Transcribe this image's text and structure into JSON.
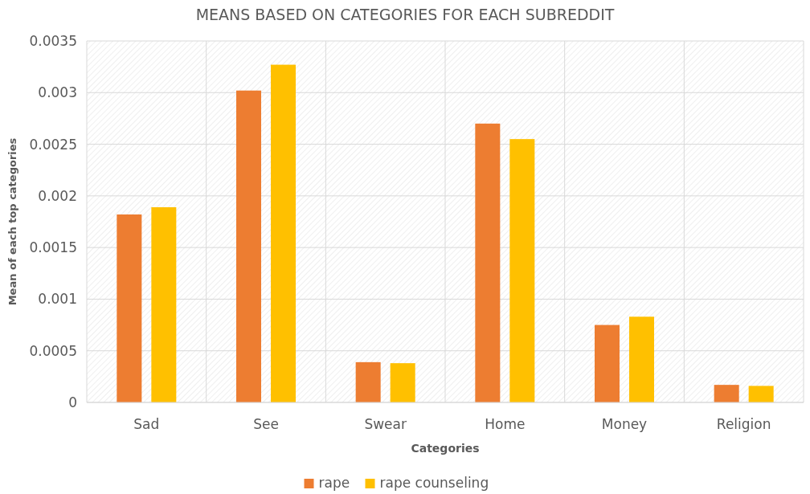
{
  "chart_data": {
    "type": "bar",
    "title": "MEANS BASED ON CATEGORIES FOR EACH SUBREDDIT",
    "xlabel": "Categories",
    "ylabel": "Mean of each top categories",
    "categories": [
      "Sad",
      "See",
      "Swear",
      "Home",
      "Money",
      "Religion"
    ],
    "series": [
      {
        "name": "rape",
        "color": "#ed7d31",
        "values": [
          0.00182,
          0.00302,
          0.00039,
          0.0027,
          0.00075,
          0.00017
        ]
      },
      {
        "name": "rape counseling",
        "color": "#ffc000",
        "values": [
          0.00189,
          0.00327,
          0.00038,
          0.00255,
          0.00083,
          0.00016
        ]
      }
    ],
    "ylim": [
      0,
      0.0035
    ],
    "yticks": [
      0,
      0.0005,
      0.001,
      0.0015,
      0.002,
      0.0025,
      0.003,
      0.0035
    ],
    "grid": true,
    "legend": "bottom"
  }
}
